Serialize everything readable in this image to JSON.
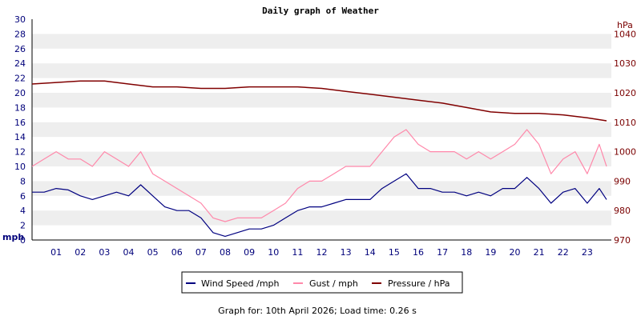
{
  "chart_data": {
    "type": "line",
    "title": "Daily graph of Weather",
    "x_ticks": [
      "01",
      "02",
      "03",
      "04",
      "05",
      "06",
      "07",
      "08",
      "09",
      "10",
      "11",
      "12",
      "13",
      "14",
      "15",
      "16",
      "17",
      "18",
      "19",
      "20",
      "21",
      "22",
      "23"
    ],
    "xlim": [
      0,
      24
    ],
    "left_axis": {
      "unit": "mph",
      "ylim": [
        0,
        30
      ],
      "ticks": [
        "0",
        "2",
        "4",
        "6",
        "8",
        "10",
        "12",
        "14",
        "16",
        "18",
        "20",
        "22",
        "24",
        "26",
        "28",
        "30"
      ]
    },
    "right_axis": {
      "unit": "hPa",
      "ylim": [
        970,
        1045
      ],
      "ticks": [
        "970",
        "980",
        "990",
        "1000",
        "1010",
        "1020",
        "1030",
        "1040"
      ]
    },
    "grid": "horizontal bands",
    "legend_position": "bottom",
    "series": [
      {
        "name": "Wind Speed /mph",
        "axis": "left",
        "color": "#000080",
        "x": [
          0,
          0.5,
          1,
          1.5,
          2,
          2.5,
          3,
          3.5,
          4,
          4.5,
          5,
          5.5,
          6,
          6.5,
          7,
          7.5,
          8,
          8.5,
          9,
          9.5,
          10,
          10.5,
          11,
          11.5,
          12,
          12.5,
          13,
          13.5,
          14,
          14.5,
          15,
          15.5,
          16,
          16.5,
          17,
          17.5,
          18,
          18.5,
          19,
          19.5,
          20,
          20.5,
          21,
          21.5,
          22,
          22.5,
          23,
          23.5,
          23.8
        ],
        "values": [
          6.5,
          6.5,
          7,
          6.8,
          6,
          5.5,
          6,
          6.5,
          6,
          7.5,
          6,
          4.5,
          4,
          4,
          3,
          1,
          0.5,
          1,
          1.5,
          1.5,
          2,
          3,
          4,
          4.5,
          4.5,
          5,
          5.5,
          5.5,
          5.5,
          7,
          8,
          9,
          7,
          7,
          6.5,
          6.5,
          6,
          6.5,
          6,
          7,
          7,
          8.5,
          7,
          5,
          6.5,
          7,
          5,
          7,
          5.5
        ]
      },
      {
        "name": "Gust / mph",
        "axis": "left",
        "color": "#ff88aa",
        "x": [
          0,
          0.5,
          1,
          1.5,
          2,
          2.5,
          3,
          3.5,
          4,
          4.5,
          5,
          5.5,
          6,
          6.5,
          7,
          7.5,
          8,
          8.5,
          9,
          9.5,
          10,
          10.5,
          11,
          11.5,
          12,
          12.5,
          13,
          13.5,
          14,
          14.5,
          15,
          15.5,
          16,
          16.5,
          17,
          17.5,
          18,
          18.5,
          19,
          19.5,
          20,
          20.5,
          21,
          21.5,
          22,
          22.5,
          23,
          23.5,
          23.8
        ],
        "values": [
          10,
          11,
          12,
          11,
          11,
          10,
          12,
          11,
          10,
          12,
          9,
          8,
          7,
          6,
          5,
          3,
          2.5,
          3,
          3,
          3,
          4,
          5,
          7,
          8,
          8,
          9,
          10,
          10,
          10,
          12,
          14,
          15,
          13,
          12,
          12,
          12,
          11,
          12,
          11,
          12,
          13,
          15,
          13,
          9,
          11,
          12,
          9,
          13,
          10
        ]
      },
      {
        "name": "Pressure / hPa",
        "axis": "right",
        "color": "#800000",
        "x": [
          0,
          1,
          2,
          3,
          4,
          5,
          6,
          7,
          8,
          9,
          10,
          11,
          12,
          13,
          14,
          15,
          16,
          17,
          18,
          19,
          20,
          21,
          22,
          23,
          23.8
        ],
        "values": [
          1023,
          1023.5,
          1024,
          1024,
          1023,
          1022,
          1022,
          1021.5,
          1021.5,
          1022,
          1022,
          1022,
          1021.5,
          1020.5,
          1019.5,
          1018.5,
          1017.5,
          1016.5,
          1015,
          1013.5,
          1013,
          1013,
          1012.5,
          1011.5,
          1010.5
        ]
      }
    ]
  },
  "footer": {
    "text": "Graph for: 10th April 2026; Load time: 0.26 s"
  }
}
